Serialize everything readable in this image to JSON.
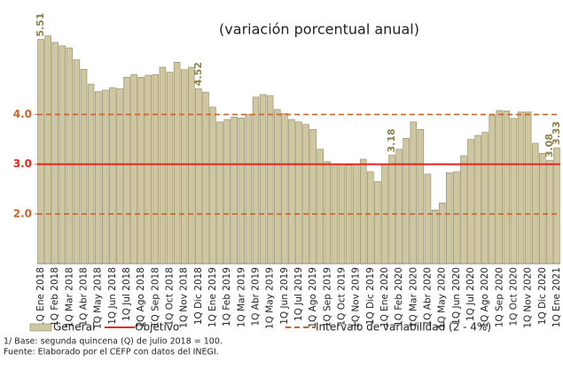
{
  "chart_data": {
    "type": "bar",
    "title": "(variación porcentual anual)",
    "categories": [
      "1Q Ene 2018",
      null,
      "1Q Feb 2018",
      null,
      "1Q Mar 2018",
      null,
      "1Q Abr 2018",
      null,
      "1Q May 2018",
      null,
      "1Q Jun 2018",
      null,
      "1Q Jul 2018",
      null,
      "1Q Ago 2018",
      null,
      "1Q Sep 2018",
      null,
      "1Q Oct 2018",
      null,
      "1Q Nov 2018",
      null,
      "1Q Dic 2018",
      null,
      "1Q Ene 2019",
      null,
      "1Q Feb 2019",
      null,
      "1Q Mar 2019",
      null,
      "1Q Abr 2019",
      null,
      "1Q May 2019",
      null,
      "1Q Jun 2019",
      null,
      "1Q Jul 2019",
      null,
      "1Q Ago 2019",
      null,
      "1Q Sep 2019",
      null,
      "1Q Oct 2019",
      null,
      "1Q Nov 2019",
      null,
      "1Q Dic 2019",
      null,
      "1Q Ene 2020",
      null,
      "1Q Feb 2020",
      null,
      "1Q Mar 2020",
      null,
      "1Q Abr 2020",
      null,
      "1Q May 2020",
      null,
      "1Q Jun 2020",
      null,
      "1Q Jul 2020",
      null,
      "1Q Ago 2020",
      null,
      "1Q Sep 2020",
      null,
      "1Q Oct 2020",
      null,
      "1Q Nov 2020",
      null,
      "1Q Dic 2020",
      null,
      "1Q Ene 2021"
    ],
    "series": [
      {
        "name": "General",
        "color": "#cfc7a0",
        "values": [
          5.51,
          5.58,
          5.45,
          5.38,
          5.34,
          5.1,
          4.91,
          4.61,
          4.46,
          4.49,
          4.54,
          4.52,
          4.75,
          4.8,
          4.75,
          4.79,
          4.8,
          4.95,
          4.85,
          5.05,
          4.9,
          4.95,
          4.52,
          4.45,
          4.15,
          3.85,
          3.9,
          3.95,
          3.93,
          4.0,
          4.35,
          4.4,
          4.38,
          4.1,
          4.02,
          3.9,
          3.85,
          3.8,
          3.7,
          3.3,
          3.05,
          3.0,
          3.0,
          2.98,
          3.0,
          3.1,
          2.85,
          2.65,
          3.0,
          3.18,
          3.3,
          3.52,
          3.85,
          3.7,
          2.8,
          2.08,
          2.22,
          2.83,
          2.85,
          3.17,
          3.5,
          3.58,
          3.64,
          3.99,
          4.08,
          4.07,
          3.92,
          4.05,
          4.05,
          3.42,
          3.22,
          3.08,
          3.33
        ]
      }
    ],
    "labeled": [
      0,
      22,
      49,
      71,
      72
    ],
    "reference_lines": [
      {
        "name": "Objetivo",
        "color": "#e8231e",
        "dashed": false,
        "values": [
          3
        ]
      },
      {
        "name": "Intervalo de variabilidad (2 - 4%)",
        "color": "#c8642a",
        "dashed": true,
        "values": [
          2,
          4
        ]
      }
    ],
    "ylim": [
      1,
      6
    ],
    "yticks": [
      {
        "value": 2,
        "label": "2.0"
      },
      {
        "value": 3,
        "label": "3.0"
      },
      {
        "value": 4,
        "label": "4.0"
      }
    ],
    "notes": [
      "1/ Base: segunda quincena (Q) de julio 2018 = 100.",
      "Fuente: Elaborado por el CEFP con  datos del INEGI."
    ]
  }
}
